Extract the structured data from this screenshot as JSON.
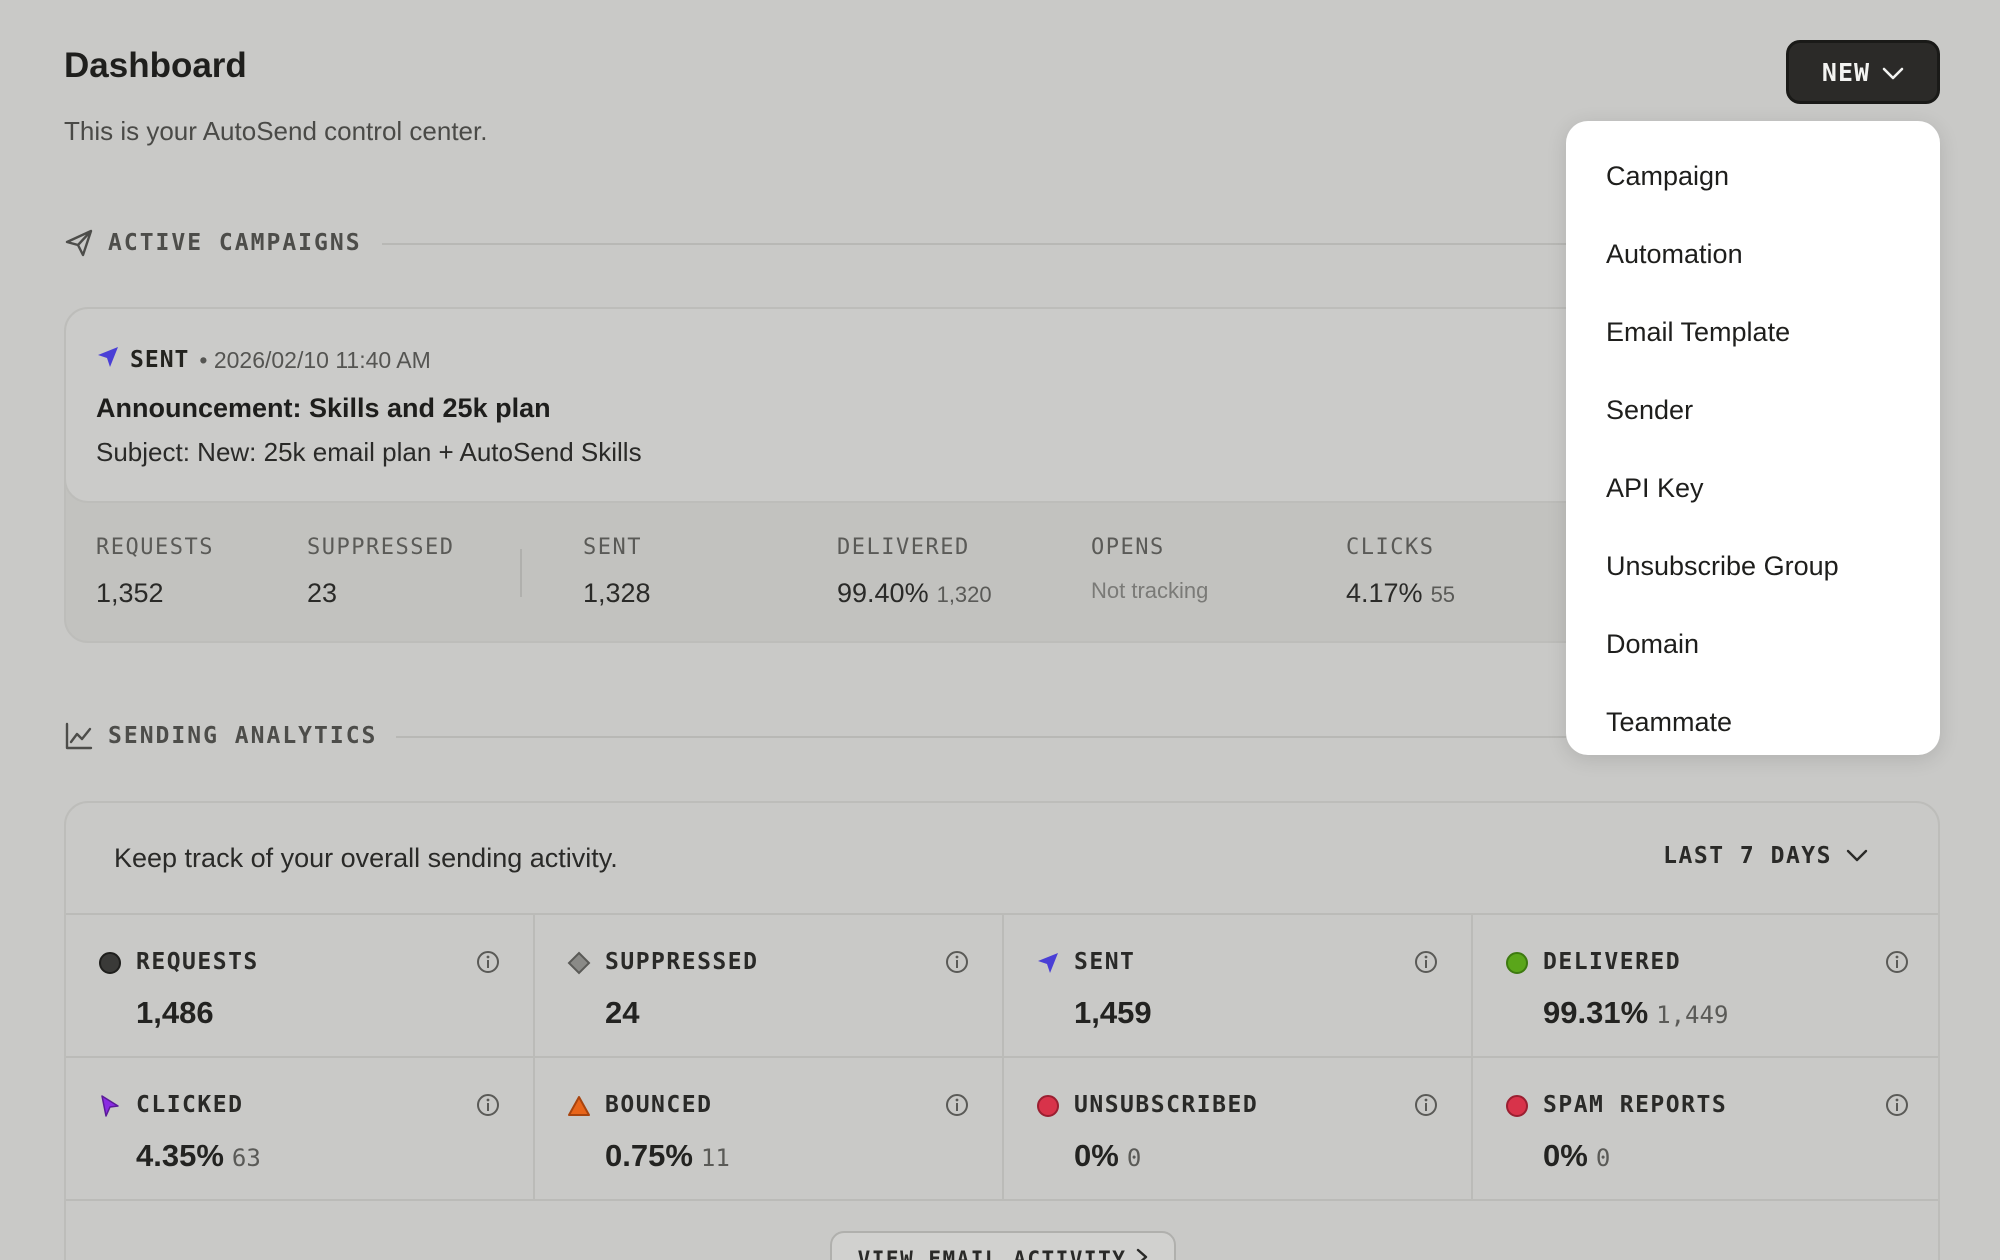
{
  "header": {
    "title": "Dashboard",
    "subtitle": "This is your AutoSend control center.",
    "new_button_label": "NEW"
  },
  "new_menu": {
    "items": [
      "Campaign",
      "Automation",
      "Email Template",
      "Sender",
      "API Key",
      "Unsubscribe Group",
      "Domain",
      "Teammate"
    ]
  },
  "active_campaigns": {
    "section_label": "ACTIVE CAMPAIGNS",
    "campaign": {
      "status": "SENT",
      "date": "• 2026/02/10 11:40 AM",
      "name": "Announcement: Skills and 25k plan",
      "subject": "Subject: New: 25k email plan + AutoSend Skills",
      "stats": {
        "requests": {
          "label": "REQUESTS",
          "value": "1,352"
        },
        "suppressed": {
          "label": "SUPPRESSED",
          "value": "23"
        },
        "sent": {
          "label": "SENT",
          "value": "1,328"
        },
        "delivered": {
          "label": "DELIVERED",
          "value": "99.40%",
          "sub": "1,320"
        },
        "opens": {
          "label": "OPENS",
          "value": "Not tracking"
        },
        "clicks": {
          "label": "CLICKS",
          "value": "4.17%",
          "sub": "55"
        }
      }
    }
  },
  "sending_analytics": {
    "section_label": "SENDING ANALYTICS",
    "description": "Keep track of your overall sending activity.",
    "range_label": "LAST 7 DAYS",
    "metrics": {
      "requests": {
        "label": "REQUESTS",
        "value": "1,486",
        "icon": "dark-circle-icon",
        "color": "#3a3a38"
      },
      "suppressed": {
        "label": "SUPPRESSED",
        "value": "24",
        "icon": "gray-diamond-icon",
        "color": "#8a8a87"
      },
      "sent": {
        "label": "SENT",
        "value": "1,459",
        "icon": "paper-plane-icon",
        "color": "#4a3fd6"
      },
      "delivered": {
        "label": "DELIVERED",
        "value": "99.31%",
        "sub": "1,449",
        "icon": "green-circle-icon",
        "color": "#5aa61a"
      },
      "clicked": {
        "label": "CLICKED",
        "value": "4.35%",
        "sub": "63",
        "icon": "cursor-icon",
        "color": "#8a2be2"
      },
      "bounced": {
        "label": "BOUNCED",
        "value": "0.75%",
        "sub": "11",
        "icon": "orange-triangle-icon",
        "color": "#e8651a"
      },
      "unsubscribed": {
        "label": "UNSUBSCRIBED",
        "value": "0%",
        "sub": "0",
        "icon": "red-circle-icon",
        "color": "#d8334a"
      },
      "spam_reports": {
        "label": "SPAM REPORTS",
        "value": "0%",
        "sub": "0",
        "icon": "red-circle-icon",
        "color": "#d8334a"
      }
    },
    "view_activity_label": "VIEW EMAIL ACTIVITY"
  }
}
